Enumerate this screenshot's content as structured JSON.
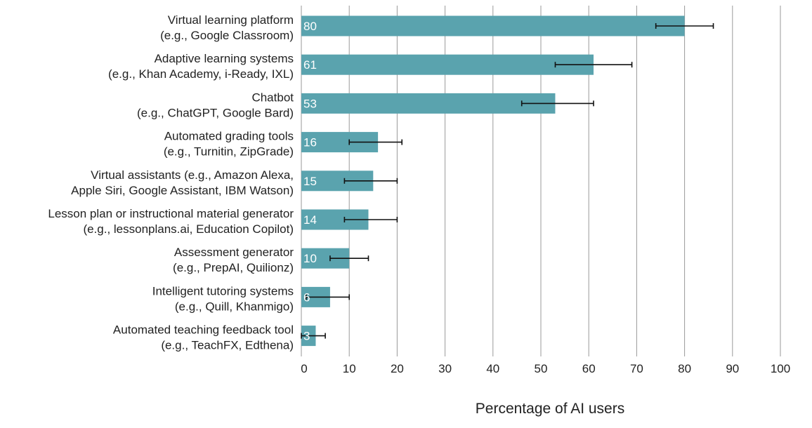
{
  "chart_data": {
    "type": "bar",
    "orientation": "horizontal",
    "title": "",
    "xlabel": "Percentage of AI users",
    "ylabel": "",
    "xlim": [
      0,
      100
    ],
    "xticks": [
      0,
      10,
      20,
      30,
      40,
      50,
      60,
      70,
      80,
      90,
      100
    ],
    "grid": true,
    "bar_color": "#5aa3ae",
    "categories": [
      [
        "Virtual learning platform",
        "(e.g., Google Classroom)"
      ],
      [
        "Adaptive learning systems",
        "(e.g., Khan Academy, i-Ready, IXL)"
      ],
      [
        "Chatbot",
        "(e.g., ChatGPT, Google Bard)"
      ],
      [
        "Automated grading tools",
        "(e.g., Turnitin, ZipGrade)"
      ],
      [
        "Virtual assistants (e.g., Amazon Alexa,",
        "Apple Siri, Google Assistant, IBM Watson)"
      ],
      [
        "Lesson plan or instructional material generator",
        "(e.g., lessonplans.ai, Education Copilot)"
      ],
      [
        "Assessment generator",
        "(e.g., PrepAI, Quilionz)"
      ],
      [
        "Intelligent tutoring systems",
        "(e.g., Quill, Khanmigo)"
      ],
      [
        "Automated teaching feedback tool",
        "(e.g., TeachFX, Edthena)"
      ]
    ],
    "values": [
      80,
      61,
      53,
      16,
      15,
      14,
      10,
      6,
      3
    ],
    "error_low": [
      74,
      53,
      46,
      10,
      9,
      9,
      6,
      1,
      0
    ],
    "error_high": [
      86,
      69,
      61,
      21,
      20,
      20,
      14,
      10,
      5
    ]
  }
}
